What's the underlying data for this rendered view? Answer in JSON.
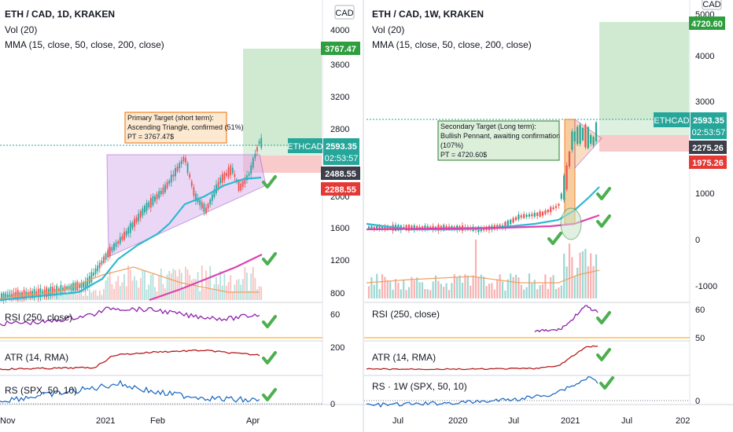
{
  "left": {
    "title": "ETH / CAD, 1D, KRAKEN",
    "vol": "Vol (20)",
    "mma": "MMA (15, close, 50, close, 200, close)",
    "currency": "CAD",
    "price_ticks": [
      "4000",
      "3600",
      "3200",
      "2800",
      "2000",
      "1600",
      "1200",
      "800"
    ],
    "rsi_label": "RSI (250, close)",
    "rsi_tick": "60",
    "atr_label": "ATR (14, RMA)",
    "atr_tick": "200",
    "rs_label": "RS (SPX, 50, 10)",
    "rs_tick": "0",
    "time_ticks": [
      "Nov",
      "2021",
      "Feb",
      "Apr"
    ],
    "annotation": [
      "Primary Target (short term):",
      "Ascending Triangle, confirmed (51%)",
      "PT = 3767.47$"
    ],
    "badges": {
      "target": "3767.47",
      "symbol": "ETHCAD",
      "price": "2593.35",
      "countdown": "02:53:57",
      "entry": "2488.55",
      "stop": "2288.55"
    }
  },
  "right": {
    "title": "ETH / CAD, 1W, KRAKEN",
    "vol": "Vol (20)",
    "mma": "MMA (15, close, 50, close, 200, close)",
    "currency": "CAD",
    "price_ticks": [
      "5000",
      "4000",
      "3000",
      "1000",
      "0",
      "-1000"
    ],
    "rsi_label": "RSI (250, close)",
    "rsi_ticks": [
      "60",
      "50"
    ],
    "atr_label": "ATR (14, RMA)",
    "rs_label": "RS · 1W (SPX, 50, 10)",
    "rs_tick": "0",
    "time_ticks": [
      "Jul",
      "2020",
      "Jul",
      "2021",
      "Jul",
      "202"
    ],
    "annotation": [
      "Secondary Target (Long term):",
      "Bullish Pennant, awaiting confirmation",
      "(107%)",
      "PT = 4720.60$"
    ],
    "badges": {
      "target": "4720.60",
      "symbol": "ETHCAD",
      "price": "2593.35",
      "countdown": "02:53:57",
      "entry": "2275.26",
      "stop": "1975.26"
    }
  },
  "colors": {
    "up": "#26a69a",
    "down": "#ef5350",
    "target_zone": "#c8e6c9",
    "stop_zone": "#f8c4c4",
    "triangle": "#d9b8f0",
    "pennant": "#f6c48f",
    "ma_fast": "#30b8d0",
    "ma_slow": "#e040b0",
    "ma_mid": "#f0a060",
    "rsi": "#8e24aa",
    "atr": "#b71c1c",
    "rs": "#1565c0",
    "check": "#4caf50"
  },
  "chart_data": [
    {
      "type": "candlestick",
      "title": "ETH / CAD, 1D, KRAKEN",
      "timeframe": "1D",
      "y_ticks": [
        800,
        1200,
        1600,
        2000,
        2800,
        3200,
        3600,
        4000
      ],
      "ylim": [
        700,
        4150
      ],
      "last_price": 2593.35,
      "target": 3767.47,
      "entry": 2488.55,
      "stop": 2288.55,
      "pattern": "Ascending Triangle",
      "x_ticks": [
        "Nov",
        "2021",
        "Feb",
        "Apr"
      ],
      "legend": "top-left"
    },
    {
      "type": "candlestick",
      "title": "ETH / CAD, 1W, KRAKEN",
      "timeframe": "1W",
      "y_ticks": [
        -1000,
        0,
        1000,
        3000,
        4000,
        5000
      ],
      "ylim": [
        -1300,
        5300
      ],
      "last_price": 2593.35,
      "target": 4720.6,
      "entry": 2275.26,
      "stop": 1975.26,
      "pattern": "Bullish Pennant",
      "x_ticks": [
        "Jul",
        "2020",
        "Jul",
        "2021",
        "Jul",
        "202"
      ],
      "legend": "top-left"
    }
  ]
}
